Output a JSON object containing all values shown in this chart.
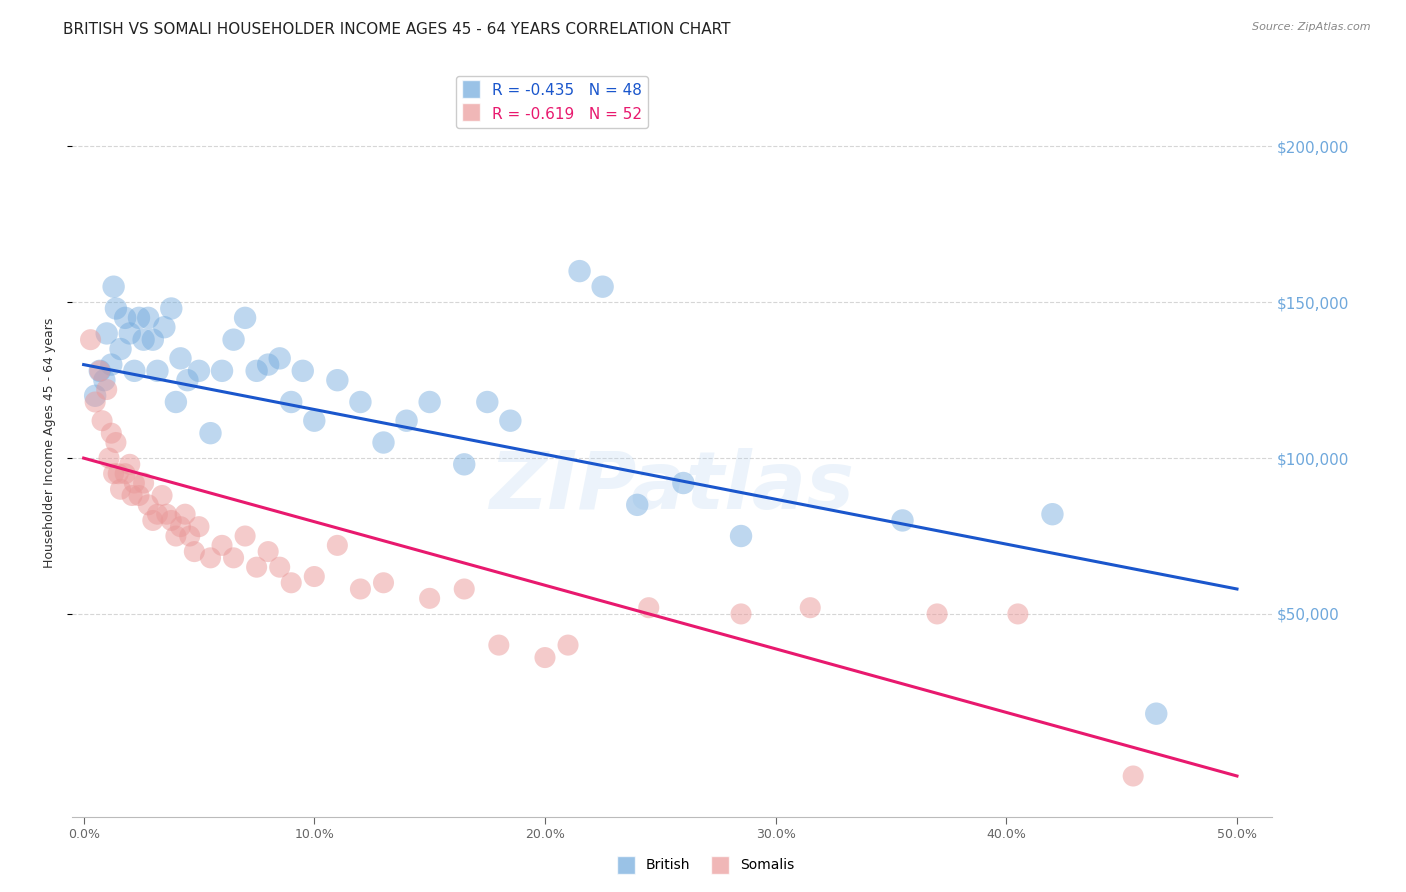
{
  "title": "BRITISH VS SOMALI HOUSEHOLDER INCOME AGES 45 - 64 YEARS CORRELATION CHART",
  "source": "Source: ZipAtlas.com",
  "ylabel": "Householder Income Ages 45 - 64 years",
  "xlabel_ticks": [
    "0.0%",
    "10.0%",
    "20.0%",
    "30.0%",
    "40.0%",
    "50.0%"
  ],
  "xlabel_vals": [
    0.0,
    0.1,
    0.2,
    0.3,
    0.4,
    0.5
  ],
  "ylabel_ticks": [
    "$50,000",
    "$100,000",
    "$150,000",
    "$200,000"
  ],
  "ylabel_vals": [
    50000,
    100000,
    150000,
    200000
  ],
  "ylim": [
    -15000,
    225000
  ],
  "xlim": [
    -0.005,
    0.515
  ],
  "british_R": -0.435,
  "british_N": 48,
  "somali_R": -0.619,
  "somali_N": 52,
  "british_color": "#6fa8dc",
  "somali_color": "#ea9999",
  "british_line_color": "#1a56cc",
  "somali_line_color": "#e8196e",
  "watermark": "ZIPatlas",
  "background_color": "#ffffff",
  "grid_color": "#cccccc",
  "right_label_color": "#6fa8dc",
  "british_line_x0": 0.0,
  "british_line_y0": 130000,
  "british_line_x1": 0.5,
  "british_line_y1": 58000,
  "somali_line_x0": 0.0,
  "somali_line_y0": 100000,
  "somali_line_x1": 0.5,
  "somali_line_y1": -2000,
  "british_scatter": [
    [
      0.005,
      120000
    ],
    [
      0.007,
      128000
    ],
    [
      0.009,
      125000
    ],
    [
      0.01,
      140000
    ],
    [
      0.012,
      130000
    ],
    [
      0.013,
      155000
    ],
    [
      0.014,
      148000
    ],
    [
      0.016,
      135000
    ],
    [
      0.018,
      145000
    ],
    [
      0.02,
      140000
    ],
    [
      0.022,
      128000
    ],
    [
      0.024,
      145000
    ],
    [
      0.026,
      138000
    ],
    [
      0.028,
      145000
    ],
    [
      0.03,
      138000
    ],
    [
      0.032,
      128000
    ],
    [
      0.035,
      142000
    ],
    [
      0.038,
      148000
    ],
    [
      0.04,
      118000
    ],
    [
      0.042,
      132000
    ],
    [
      0.045,
      125000
    ],
    [
      0.05,
      128000
    ],
    [
      0.055,
      108000
    ],
    [
      0.06,
      128000
    ],
    [
      0.065,
      138000
    ],
    [
      0.07,
      145000
    ],
    [
      0.075,
      128000
    ],
    [
      0.08,
      130000
    ],
    [
      0.085,
      132000
    ],
    [
      0.09,
      118000
    ],
    [
      0.095,
      128000
    ],
    [
      0.1,
      112000
    ],
    [
      0.11,
      125000
    ],
    [
      0.12,
      118000
    ],
    [
      0.13,
      105000
    ],
    [
      0.14,
      112000
    ],
    [
      0.15,
      118000
    ],
    [
      0.165,
      98000
    ],
    [
      0.175,
      118000
    ],
    [
      0.185,
      112000
    ],
    [
      0.215,
      160000
    ],
    [
      0.225,
      155000
    ],
    [
      0.24,
      85000
    ],
    [
      0.26,
      92000
    ],
    [
      0.285,
      75000
    ],
    [
      0.355,
      80000
    ],
    [
      0.42,
      82000
    ],
    [
      0.465,
      18000
    ]
  ],
  "somali_scatter": [
    [
      0.003,
      138000
    ],
    [
      0.005,
      118000
    ],
    [
      0.007,
      128000
    ],
    [
      0.008,
      112000
    ],
    [
      0.01,
      122000
    ],
    [
      0.011,
      100000
    ],
    [
      0.012,
      108000
    ],
    [
      0.013,
      95000
    ],
    [
      0.014,
      105000
    ],
    [
      0.015,
      95000
    ],
    [
      0.016,
      90000
    ],
    [
      0.018,
      95000
    ],
    [
      0.02,
      98000
    ],
    [
      0.021,
      88000
    ],
    [
      0.022,
      92000
    ],
    [
      0.024,
      88000
    ],
    [
      0.026,
      92000
    ],
    [
      0.028,
      85000
    ],
    [
      0.03,
      80000
    ],
    [
      0.032,
      82000
    ],
    [
      0.034,
      88000
    ],
    [
      0.036,
      82000
    ],
    [
      0.038,
      80000
    ],
    [
      0.04,
      75000
    ],
    [
      0.042,
      78000
    ],
    [
      0.044,
      82000
    ],
    [
      0.046,
      75000
    ],
    [
      0.048,
      70000
    ],
    [
      0.05,
      78000
    ],
    [
      0.055,
      68000
    ],
    [
      0.06,
      72000
    ],
    [
      0.065,
      68000
    ],
    [
      0.07,
      75000
    ],
    [
      0.075,
      65000
    ],
    [
      0.08,
      70000
    ],
    [
      0.085,
      65000
    ],
    [
      0.09,
      60000
    ],
    [
      0.1,
      62000
    ],
    [
      0.11,
      72000
    ],
    [
      0.12,
      58000
    ],
    [
      0.13,
      60000
    ],
    [
      0.15,
      55000
    ],
    [
      0.165,
      58000
    ],
    [
      0.18,
      40000
    ],
    [
      0.2,
      36000
    ],
    [
      0.21,
      40000
    ],
    [
      0.245,
      52000
    ],
    [
      0.285,
      50000
    ],
    [
      0.315,
      52000
    ],
    [
      0.37,
      50000
    ],
    [
      0.405,
      50000
    ],
    [
      0.455,
      -2000
    ]
  ],
  "title_fontsize": 11,
  "axis_label_fontsize": 9,
  "tick_fontsize": 9,
  "legend_fontsize": 10
}
